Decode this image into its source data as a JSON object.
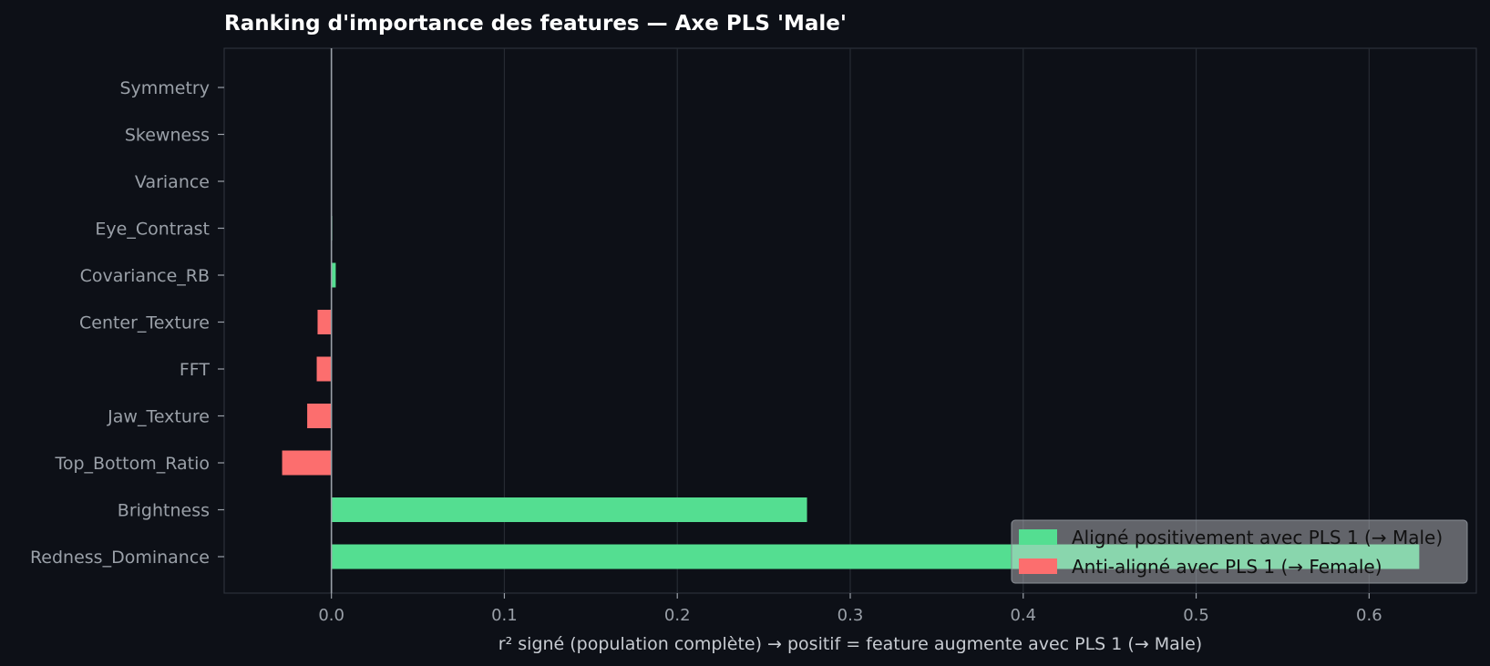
{
  "chart_data": {
    "type": "bar",
    "orientation": "horizontal",
    "title": "Ranking d'importance des features — Axe PLS 'Male'",
    "xlabel": "r² signé (population complète)  →  positif = feature augmente avec PLS 1 (→ Male)",
    "ylabel": "",
    "xlim": [
      -0.062,
      0.662
    ],
    "xticks": [
      0.0,
      0.1,
      0.2,
      0.3,
      0.4,
      0.5,
      0.6
    ],
    "xtick_labels": [
      "0.0",
      "0.1",
      "0.2",
      "0.3",
      "0.4",
      "0.5",
      "0.6"
    ],
    "grid": "vertical",
    "categories": [
      "Symmetry",
      "Skewness",
      "Variance",
      "Eye_Contrast",
      "Covariance_RB",
      "Center_Texture",
      "FFT",
      "Jaw_Texture",
      "Top_Bottom_Ratio",
      "Brightness",
      "Redness_Dominance"
    ],
    "values": [
      0.0,
      0.0,
      0.0,
      0.0005,
      0.0025,
      -0.008,
      -0.0085,
      -0.014,
      -0.0285,
      0.275,
      0.629
    ],
    "positive_color": "#54de91",
    "negative_color": "#fc6e6e",
    "legend": {
      "placement": "bottom-right",
      "entries": [
        {
          "label": "Aligné positivement avec PLS 1 (→ Male)",
          "color": "#54de91"
        },
        {
          "label": "Anti-aligné avec PLS 1 (→ Female)",
          "color": "#fc6e6e"
        }
      ]
    }
  }
}
